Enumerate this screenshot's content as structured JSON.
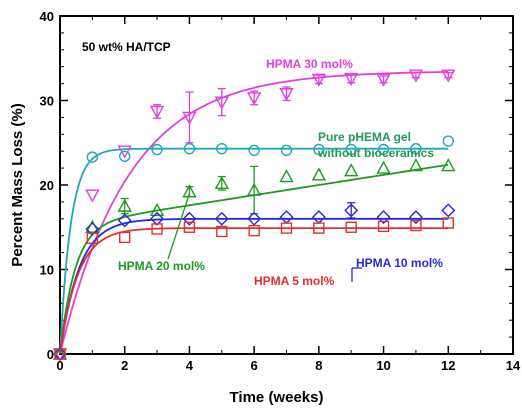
{
  "chart_data": {
    "type": "scatter",
    "title": "",
    "xlabel": "Time (weeks)",
    "ylabel": "Percent Mass Loss (%)",
    "xlim": [
      0,
      14
    ],
    "ylim": [
      0,
      40
    ],
    "xticks": [
      "0",
      "2",
      "4",
      "6",
      "8",
      "10",
      "12",
      "14"
    ],
    "yticks": [
      "0",
      "10",
      "20",
      "30",
      "40"
    ],
    "grid": false,
    "legend": "none",
    "annotations": [
      {
        "id": "condition",
        "text": "50 wt% HA/TCP",
        "color": "#000000"
      },
      {
        "id": "hpma30",
        "text": "HPMA 30 mol%",
        "color": "#e23ee0"
      },
      {
        "id": "phema1",
        "text": "Pure pHEMA gel",
        "color": "#1f9a5a"
      },
      {
        "id": "phema2",
        "text": "without bioceramics",
        "color": "#1f9a5a"
      },
      {
        "id": "hpma10",
        "text": "HPMA 10 mol%",
        "color": "#2a2ad0"
      },
      {
        "id": "hpma20",
        "text": "HPMA 20 mol%",
        "color": "#1f9a1f"
      },
      {
        "id": "hpma5",
        "text": "HPMA 5 mol%",
        "color": "#e03030"
      }
    ],
    "series": [
      {
        "key": "hpma30",
        "marker": "triangle-down",
        "color": "#e23ee0",
        "x": [
          0,
          1,
          2,
          3,
          4,
          5,
          6,
          7,
          8,
          9,
          10,
          11,
          12
        ],
        "y": [
          0,
          18.8,
          24.0,
          28.7,
          28.0,
          29.8,
          30.3,
          30.8,
          32.5,
          32.6,
          32.5,
          33.0,
          33.0
        ],
        "err": [
          0,
          0,
          0,
          0.8,
          3.0,
          1.6,
          0.8,
          0.8,
          0.5,
          0.5,
          0.4,
          0.3,
          0.3
        ]
      },
      {
        "key": "phema",
        "marker": "circle",
        "color": "#22a8b8",
        "x": [
          0,
          1,
          2,
          3,
          4,
          5,
          6,
          7,
          8,
          9,
          10,
          11,
          12
        ],
        "y": [
          0,
          23.3,
          23.4,
          24.2,
          24.3,
          24.3,
          24.1,
          24.1,
          24.2,
          24.2,
          24.2,
          24.3,
          25.2
        ],
        "err": [
          0,
          0,
          0,
          0,
          0,
          0,
          0,
          0,
          0,
          0,
          0,
          0,
          0
        ]
      },
      {
        "key": "hpma20",
        "marker": "triangle-up",
        "color": "#1f9a1f",
        "x": [
          0,
          1,
          2,
          3,
          4,
          5,
          6,
          7,
          8,
          9,
          10,
          11,
          12
        ],
        "y": [
          0,
          15.0,
          17.5,
          17.0,
          19.2,
          20.2,
          19.4,
          21.0,
          21.2,
          21.7,
          22.0,
          22.3,
          22.3
        ],
        "err": [
          0,
          0,
          0.9,
          0,
          0.6,
          0.8,
          2.8,
          0,
          0,
          0,
          0,
          0,
          0
        ]
      },
      {
        "key": "hpma10",
        "marker": "diamond",
        "color": "#2a2ad0",
        "x": [
          0,
          1,
          2,
          3,
          4,
          5,
          6,
          7,
          8,
          9,
          10,
          11,
          12
        ],
        "y": [
          0,
          14.8,
          15.8,
          16.0,
          16.0,
          16.0,
          16.0,
          16.2,
          16.2,
          17.0,
          16.2,
          16.2,
          17.0
        ],
        "err": [
          0,
          0,
          0,
          0,
          0,
          0,
          0,
          0,
          0,
          0.9,
          0,
          0,
          0
        ]
      },
      {
        "key": "hpma5",
        "marker": "square",
        "color": "#e03030",
        "x": [
          0,
          1,
          2,
          3,
          4,
          5,
          6,
          7,
          8,
          9,
          10,
          11,
          12
        ],
        "y": [
          0,
          13.7,
          13.8,
          14.8,
          15.0,
          14.5,
          14.6,
          14.9,
          14.9,
          15.0,
          15.1,
          15.2,
          15.5
        ],
        "err": [
          0,
          0,
          0,
          0,
          0,
          0,
          0,
          0,
          0,
          0,
          0,
          0,
          0
        ]
      }
    ],
    "fits": [
      {
        "key": "hpma30",
        "color": "#e23ee0",
        "a": 33.5,
        "k": 0.47
      },
      {
        "key": "phema",
        "color": "#22a8b8",
        "a": 24.3,
        "k": 3.0
      },
      {
        "key": "hpma20",
        "color": "#1f9a1f",
        "a": 15.2,
        "k": 2.2,
        "b": 0.6
      },
      {
        "key": "hpma10",
        "color": "#2a2ad0",
        "a": 16.0,
        "k": 1.7
      },
      {
        "key": "hpma5",
        "color": "#e03030",
        "a": 14.9,
        "k": 1.8
      }
    ]
  }
}
